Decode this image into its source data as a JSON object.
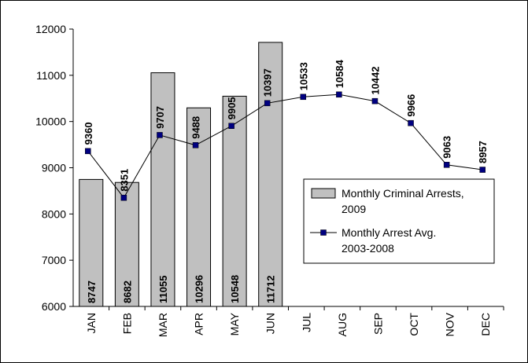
{
  "chart_data": {
    "type": "bar",
    "categories": [
      "JAN",
      "FEB",
      "MAR",
      "APR",
      "MAY",
      "JUN",
      "JUL",
      "AUG",
      "SEP",
      "OCT",
      "NOV",
      "DEC"
    ],
    "series": [
      {
        "name": "Monthly Criminal Arrests, 2009",
        "type": "bar",
        "color": "#c0c0c0",
        "values": [
          8747,
          8682,
          11055,
          10296,
          10548,
          11712,
          null,
          null,
          null,
          null,
          null,
          null
        ]
      },
      {
        "name": "Monthly Arrest Avg. 2003-2008",
        "type": "line",
        "color": "#000080",
        "values": [
          9360,
          8351,
          9707,
          9488,
          9905,
          10397,
          10533,
          10584,
          10442,
          9966,
          9063,
          8957
        ]
      }
    ],
    "ylim": [
      6000,
      12000
    ],
    "yticks": [
      6000,
      7000,
      8000,
      9000,
      10000,
      11000,
      12000
    ],
    "grid": false,
    "legend": "right"
  }
}
